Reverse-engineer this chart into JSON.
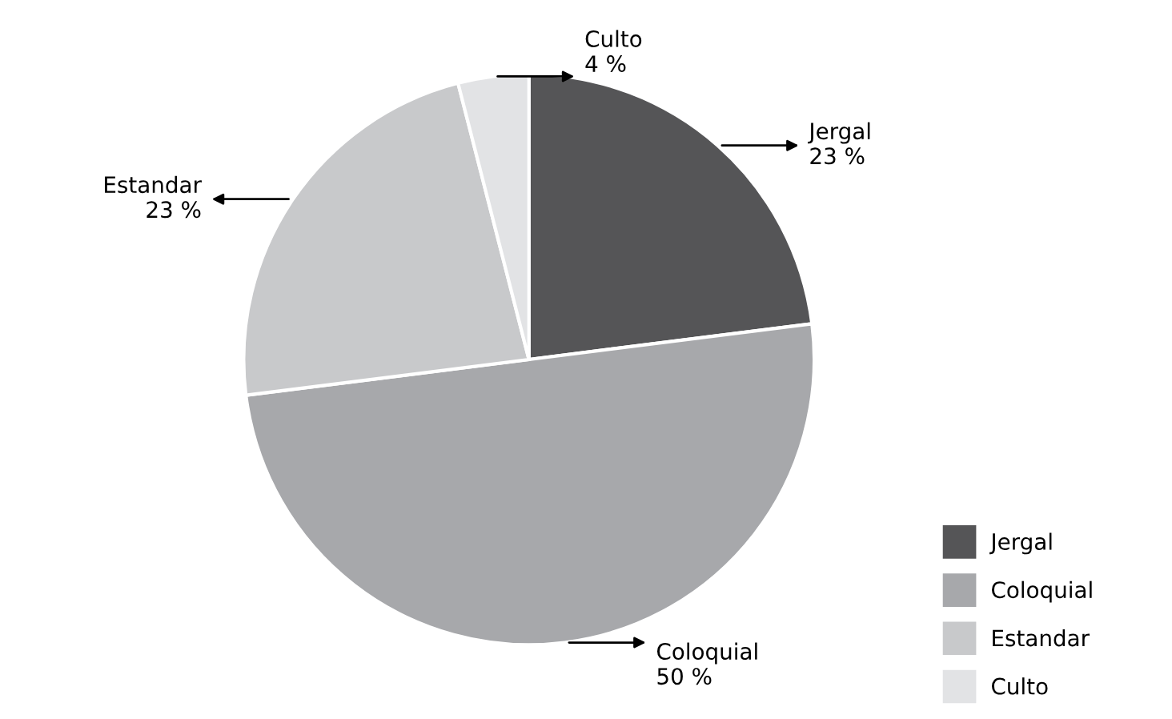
{
  "chart_data": {
    "type": "pie",
    "categories": [
      "Jergal",
      "Coloquial",
      "Estandar",
      "Culto"
    ],
    "values": [
      23,
      50,
      23,
      4
    ],
    "colors": [
      "#555557",
      "#a7a8ab",
      "#c8c9cb",
      "#e2e3e5"
    ],
    "value_labels": [
      "23 %",
      "50 %",
      "23 %",
      "4 %"
    ],
    "legend": "bottom right"
  }
}
